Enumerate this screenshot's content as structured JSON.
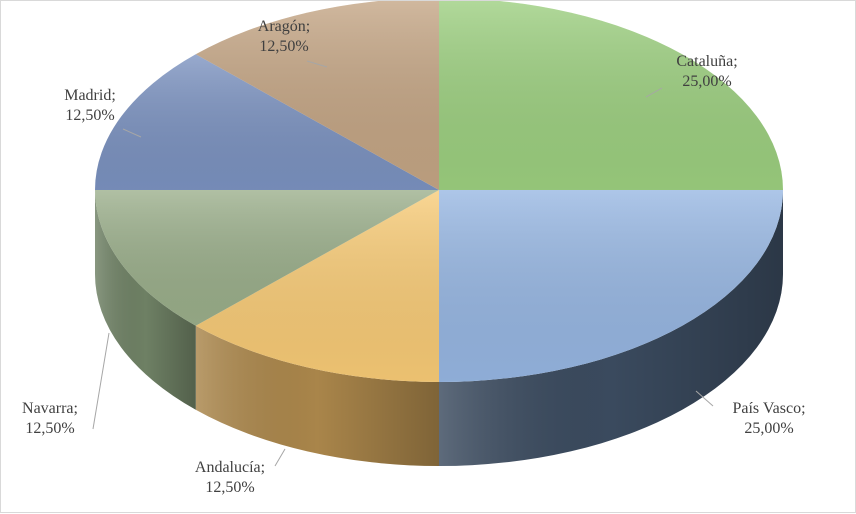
{
  "chart_data": {
    "type": "pie",
    "title": "",
    "slices": [
      {
        "label": "Cataluña",
        "value": 25.0,
        "pct_text": "25,00%",
        "color": "#9ccf7f"
      },
      {
        "label": "País Vasco",
        "value": 25.0,
        "pct_text": "25,00%",
        "color": "#96b6e2"
      },
      {
        "label": "Andalucía",
        "value": 12.5,
        "pct_text": "12,50%",
        "color": "#f8cb76"
      },
      {
        "label": "Navarra",
        "value": 12.5,
        "pct_text": "12,50%",
        "color": "#9aae8a"
      },
      {
        "label": "Madrid",
        "value": 12.5,
        "pct_text": "12,50%",
        "color": "#7b92c0"
      },
      {
        "label": "Aragón",
        "value": 12.5,
        "pct_text": "12,50%",
        "color": "#c4a584"
      }
    ],
    "sides": {
      "País Vasco": "#3a4a5e",
      "Andalucía": "#a9854a",
      "Navarra": "#6e8064"
    },
    "style": "3d-pie",
    "legend": "none",
    "data_labels": "category; percentage"
  }
}
